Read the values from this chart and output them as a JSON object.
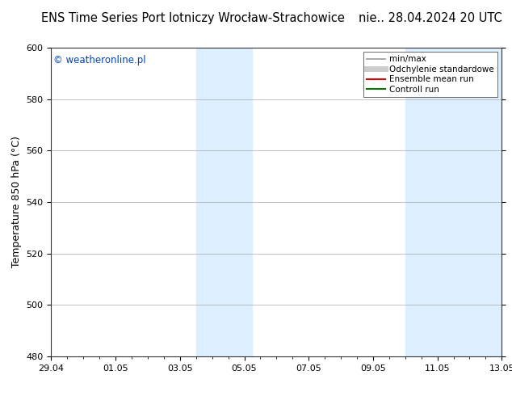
{
  "title_left": "ENS Time Series Port lotniczy Wrocław-Strachowice",
  "title_right": "nie.. 28.04.2024 20 UTC",
  "ylabel": "Temperature 850 hPa (°C)",
  "ylim": [
    480,
    600
  ],
  "yticks": [
    480,
    500,
    520,
    540,
    560,
    580,
    600
  ],
  "xtick_labels": [
    "29.04",
    "01.05",
    "03.05",
    "05.05",
    "07.05",
    "09.05",
    "11.05",
    "13.05"
  ],
  "xtick_positions": [
    0,
    2,
    4,
    6,
    8,
    10,
    12,
    14
  ],
  "xlim": [
    0,
    14
  ],
  "shaded_bands": [
    {
      "x_start": 4.5,
      "x_end": 6.25,
      "color": "#ddeeff"
    },
    {
      "x_start": 11.0,
      "x_end": 14.0,
      "color": "#ddeeff"
    }
  ],
  "watermark_text": "© weatheronline.pl",
  "watermark_color": "#0044bb",
  "legend_items": [
    {
      "label": "min/max",
      "color": "#999999",
      "lw": 1.2,
      "ls": "-"
    },
    {
      "label": "Odchylenie standardowe",
      "color": "#cccccc",
      "lw": 5,
      "ls": "-"
    },
    {
      "label": "Ensemble mean run",
      "color": "#dd0000",
      "lw": 1.5,
      "ls": "-"
    },
    {
      "label": "Controll run",
      "color": "#007700",
      "lw": 1.5,
      "ls": "-"
    }
  ],
  "background_color": "#ffffff",
  "plot_bg_color": "#ffffff",
  "header_bg_color": "#ffffff",
  "grid_color": "#aaaaaa",
  "title_fontsize": 10.5,
  "ylabel_fontsize": 9,
  "tick_fontsize": 8,
  "watermark_fontsize": 8.5,
  "legend_fontsize": 7.5
}
